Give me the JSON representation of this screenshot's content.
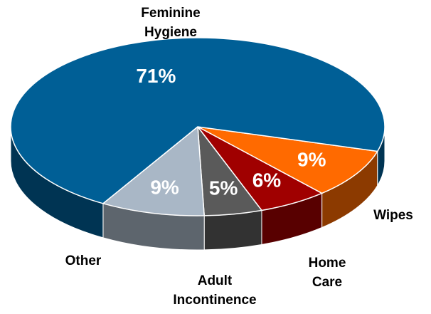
{
  "chart_data": {
    "type": "pie",
    "categories": [
      "Wipes",
      "Home Care",
      "Adult Incontinence",
      "Other",
      "Feminine Hygiene"
    ],
    "values": [
      9,
      6,
      5,
      9,
      71
    ],
    "value_labels": [
      "9%",
      "6%",
      "5%",
      "9%",
      "71%"
    ],
    "colors": [
      "#ff6a00",
      "#a00000",
      "#5a5a5a",
      "#a9b7c6",
      "#005f96"
    ]
  }
}
